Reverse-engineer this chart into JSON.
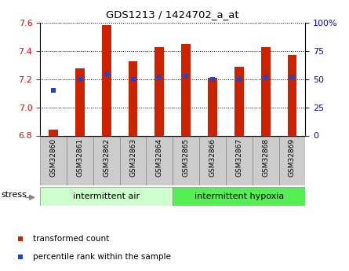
{
  "title": "GDS1213 / 1424702_a_at",
  "samples": [
    "GSM32860",
    "GSM32861",
    "GSM32862",
    "GSM32863",
    "GSM32864",
    "GSM32865",
    "GSM32866",
    "GSM32867",
    "GSM32868",
    "GSM32869"
  ],
  "bar_values": [
    6.84,
    7.28,
    7.585,
    7.33,
    7.43,
    7.45,
    7.21,
    7.29,
    7.43,
    7.37
  ],
  "bar_base": 6.8,
  "percentile_values": [
    40,
    50,
    55,
    50,
    52,
    53,
    50,
    50,
    52,
    52
  ],
  "bar_color": "#cc2200",
  "blue_color": "#2244cc",
  "ylim_left": [
    6.8,
    7.6
  ],
  "ylim_right": [
    0,
    100
  ],
  "yticks_left": [
    6.8,
    7.0,
    7.2,
    7.4,
    7.6
  ],
  "yticks_right": [
    0,
    25,
    50,
    75,
    100
  ],
  "ytick_labels_right": [
    "0",
    "25",
    "50",
    "75",
    "100%"
  ],
  "groups": [
    {
      "label": "intermittent air",
      "start": 0,
      "end": 4,
      "color": "#ccffcc"
    },
    {
      "label": "intermittent hypoxia",
      "start": 5,
      "end": 9,
      "color": "#55ee55"
    }
  ],
  "stress_label": "stress",
  "legend_items": [
    {
      "color": "#cc2200",
      "label": "transformed count"
    },
    {
      "color": "#2244cc",
      "label": "percentile rank within the sample"
    }
  ],
  "bar_width": 0.35
}
